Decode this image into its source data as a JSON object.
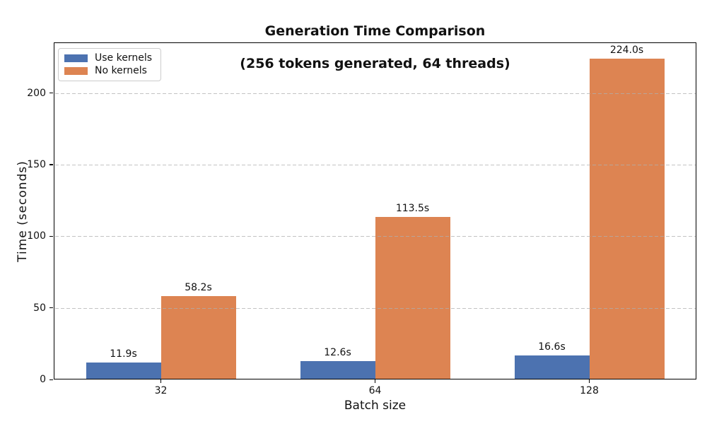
{
  "chart_data": {
    "type": "bar",
    "title": "Generation Time Comparison",
    "subtitle": "(256 tokens generated, 64 threads)",
    "xlabel": "Batch size",
    "ylabel": "Time (seconds)",
    "categories": [
      "32",
      "64",
      "128"
    ],
    "series": [
      {
        "name": "Use kernels",
        "color": "#4C72B0",
        "values": [
          11.9,
          12.6,
          16.6
        ],
        "bar_labels": [
          "11.9s",
          "12.6s",
          "16.6s"
        ]
      },
      {
        "name": "No kernels",
        "color": "#DD8452",
        "values": [
          58.2,
          113.5,
          224.0
        ],
        "bar_labels": [
          "58.2s",
          "113.5s",
          "224.0s"
        ]
      }
    ],
    "yticks": [
      0,
      50,
      100,
      150,
      200
    ],
    "ytick_labels": [
      "0",
      "50",
      "100",
      "150",
      "200"
    ],
    "ylim": [
      0,
      235.3
    ],
    "grid": "horizontal-dashed-above-bars",
    "legend_position": "upper-left",
    "colors": {
      "spine": "#000000",
      "gridline": "#afafaf",
      "text": "#111111",
      "background": "#ffffff",
      "legend_border": "#cccccc"
    }
  }
}
